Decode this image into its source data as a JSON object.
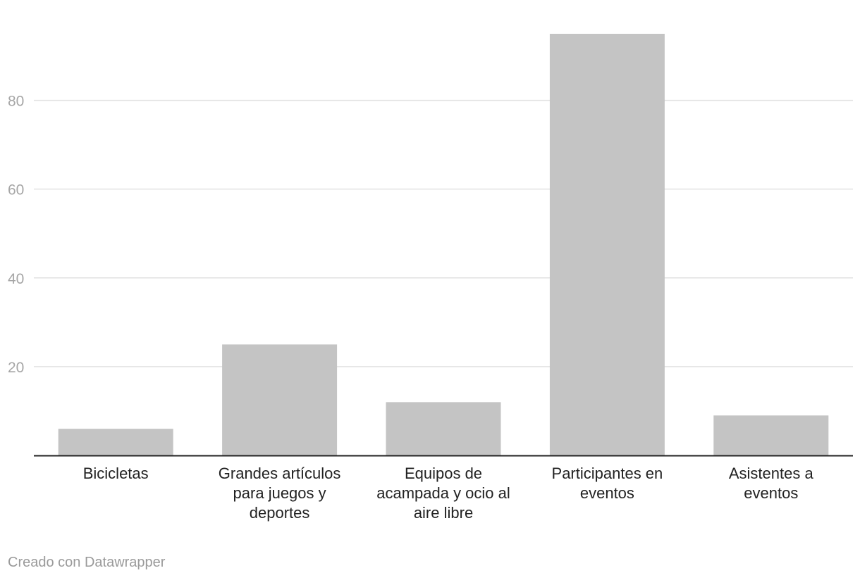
{
  "chart_data": {
    "type": "bar",
    "categories": [
      [
        "Bicicletas"
      ],
      [
        "Grandes artículos",
        "para juegos y",
        "deportes"
      ],
      [
        "Equipos de",
        "acampada y ocio al",
        "aire libre"
      ],
      [
        "Participantes en",
        "eventos"
      ],
      [
        "Asistentes a",
        "eventos"
      ]
    ],
    "values": [
      6,
      25,
      12,
      95,
      9
    ],
    "ylim": [
      0,
      95
    ],
    "yticks": [
      20,
      40,
      60,
      80
    ],
    "title": "",
    "xlabel": "",
    "ylabel": "",
    "grid": true,
    "colors": {
      "bar": "#c4c4c4",
      "grid": "#e2e2e2",
      "baseline": "#222222"
    }
  },
  "footer": {
    "credit": "Creado con Datawrapper"
  }
}
